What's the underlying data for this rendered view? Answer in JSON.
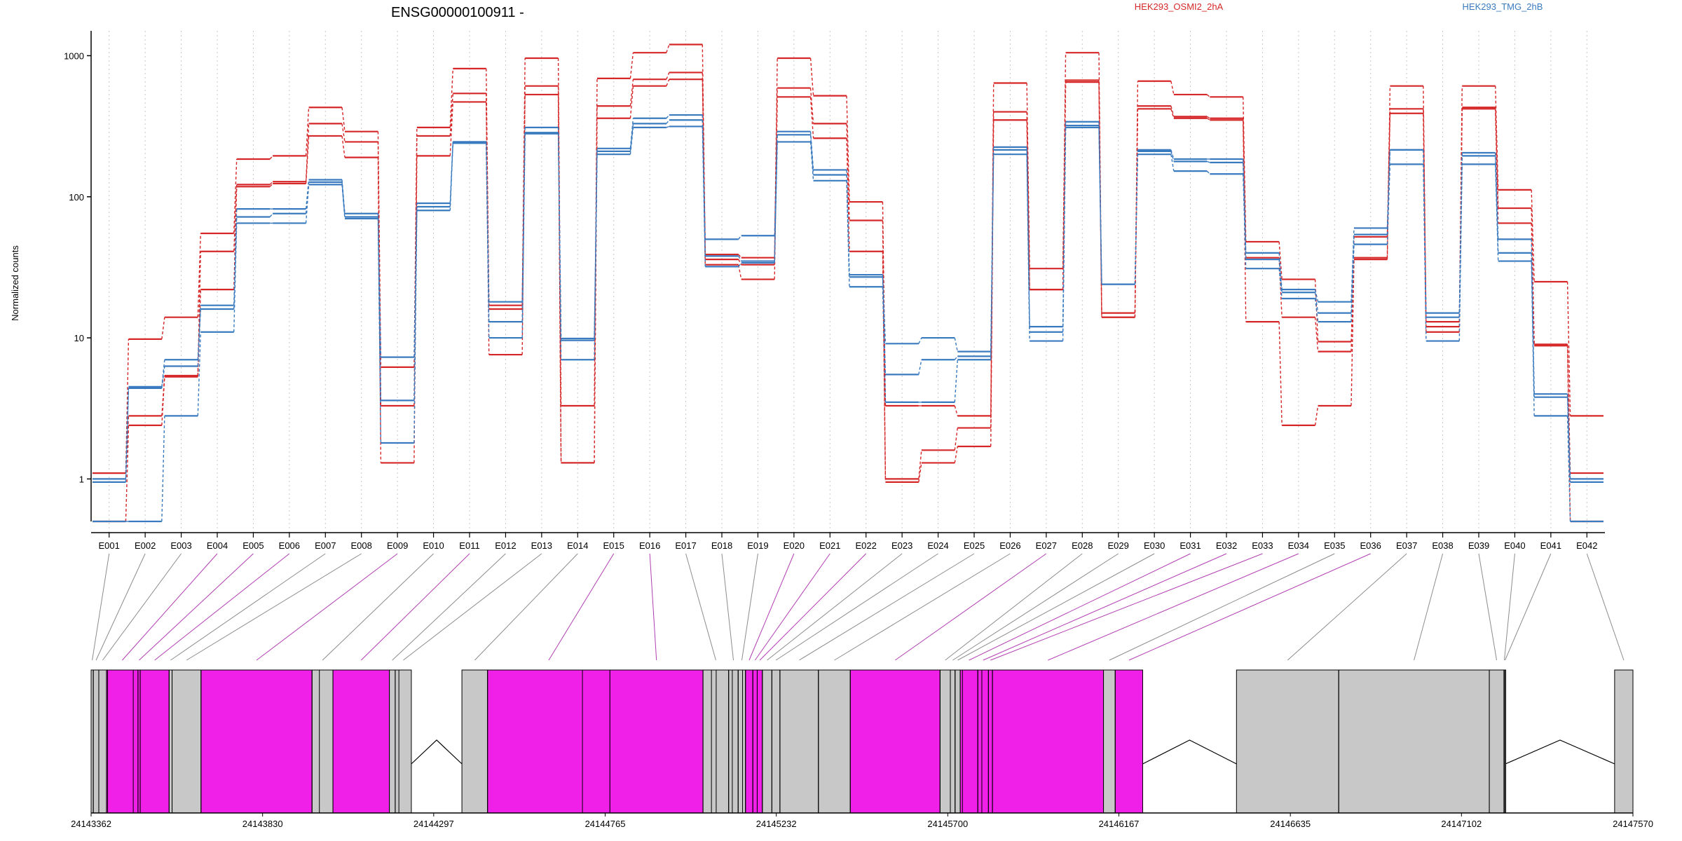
{
  "chart_data": [
    {
      "type": "line",
      "title": "ENSG00000100911 -",
      "ylabel": "Normalized counts",
      "yscale": "log",
      "ylim": [
        0.5,
        1500
      ],
      "y_ticks": [
        1,
        10,
        100,
        1000
      ],
      "y_tick_labels": [
        "1",
        "10",
        "100",
        "1000"
      ],
      "grid": true,
      "legend_position": "top-right",
      "colors": {
        "HEK293_OSMI2_2hA": "#d62728",
        "HEK293_TMG_2hB": "#3a7bbf"
      },
      "categories": [
        "E001",
        "E002",
        "E003",
        "E004",
        "E005",
        "E006",
        "E007",
        "E008",
        "E009",
        "E010",
        "E011",
        "E012",
        "E013",
        "E014",
        "E015",
        "E016",
        "E017",
        "E018",
        "E019",
        "E020",
        "E021",
        "E022",
        "E023",
        "E024",
        "E025",
        "E026",
        "E027",
        "E028",
        "E029",
        "E030",
        "E031",
        "E032",
        "E033",
        "E034",
        "E035",
        "E036",
        "E037",
        "E038",
        "E039",
        "E040",
        "E041",
        "E042"
      ],
      "series": [
        {
          "name": "HEK293_OSMI2_2hA",
          "group": "HEK293_OSMI2_2hA",
          "values": [
            1.1,
            9.8,
            14,
            55,
            185,
            195,
            430,
            290,
            6.2,
            310,
            810,
            17,
            960,
            3.3,
            690,
            1050,
            1200,
            39,
            37,
            960,
            520,
            92,
            3.3,
            3.3,
            2.8,
            640,
            31,
            1050,
            15,
            660,
            530,
            510,
            48,
            26,
            9.4,
            37,
            610,
            13,
            610,
            112,
            25,
            2.8
          ]
        },
        {
          "name": "HEK293_OSMI2_2hA",
          "group": "HEK293_OSMI2_2hA",
          "values": [
            1.1,
            2.8,
            5.4,
            41,
            122,
            128,
            330,
            245,
            3.3,
            270,
            540,
            7.6,
            610,
            1.3,
            440,
            680,
            760,
            36,
            33,
            590,
            330,
            68,
            1.0,
            1.6,
            2.3,
            400,
            22,
            670,
            14,
            440,
            370,
            360,
            37,
            14,
            8.0,
            52,
            420,
            12,
            430,
            83,
            9.0,
            1.1
          ]
        },
        {
          "name": "HEK293_OSMI2_2hA",
          "group": "HEK293_OSMI2_2hA",
          "values": [
            0.5,
            2.4,
            5.3,
            22,
            118,
            124,
            270,
            190,
            1.3,
            195,
            470,
            16,
            530,
            1.3,
            360,
            610,
            680,
            33,
            26,
            510,
            260,
            41,
            0.95,
            1.3,
            1.7,
            350,
            22,
            650,
            14,
            420,
            360,
            350,
            13,
            2.4,
            3.3,
            36,
            390,
            11,
            420,
            65,
            8.8,
            0.5
          ]
        },
        {
          "name": "HEK293_TMG_2hB",
          "group": "HEK293_TMG_2hB",
          "values": [
            1.0,
            4.5,
            7.0,
            17,
            82,
            82,
            132,
            76,
            7.3,
            90,
            245,
            18,
            310,
            9.9,
            220,
            360,
            380,
            50,
            53,
            290,
            155,
            28,
            9.1,
            10,
            8.0,
            225,
            12,
            340,
            24,
            215,
            185,
            185,
            40,
            22,
            18,
            60,
            215,
            15,
            205,
            50,
            4.0,
            1.0
          ]
        },
        {
          "name": "HEK293_TMG_2hB",
          "group": "HEK293_TMG_2hB",
          "values": [
            0.95,
            4.4,
            6.3,
            16,
            72,
            76,
            127,
            72,
            3.6,
            85,
            245,
            13,
            285,
            9.6,
            210,
            330,
            350,
            38,
            35,
            275,
            143,
            27,
            5.5,
            7.0,
            7.4,
            215,
            11,
            320,
            24,
            210,
            178,
            175,
            36,
            21,
            15,
            54,
            215,
            14,
            195,
            40,
            3.8,
            0.95
          ]
        },
        {
          "name": "HEK293_TMG_2hB",
          "group": "HEK293_TMG_2hB",
          "values": [
            0.5,
            0.5,
            2.8,
            11,
            65,
            65,
            122,
            70,
            1.8,
            80,
            240,
            10,
            280,
            7.0,
            200,
            310,
            315,
            32,
            34,
            245,
            130,
            23,
            3.5,
            3.5,
            7.0,
            200,
            9.5,
            310,
            24,
            200,
            152,
            145,
            31,
            19,
            13,
            46,
            170,
            9.5,
            170,
            35,
            2.8,
            0.5
          ]
        }
      ]
    },
    {
      "type": "table",
      "title": "",
      "xlabel": "",
      "x_ticks": [
        24143362,
        24143830,
        24144297,
        24144765,
        24145232,
        24145700,
        24146167,
        24146635,
        24147102,
        24147570
      ],
      "x_tick_labels": [
        "24143362",
        "24143830",
        "24144297",
        "24144765",
        "24145232",
        "24145700",
        "24146167",
        "24146635",
        "24147102",
        "24147570"
      ],
      "xlim": [
        24143362,
        24147570
      ],
      "colors": {
        "highlight": "#f020e8",
        "normal": "#c8c8c8"
      },
      "exon_bins": [
        {
          "id": "E001",
          "start": 24143362,
          "end": 24143368,
          "sig": false
        },
        {
          "id": "E002",
          "start": 24143368,
          "end": 24143383,
          "sig": false
        },
        {
          "id": "E003",
          "start": 24143383,
          "end": 24143404,
          "sig": false
        },
        {
          "id": "E004",
          "start": 24143404,
          "end": 24143490,
          "sig": true
        },
        {
          "id": "E005",
          "start": 24143490,
          "end": 24143496,
          "sig": true
        },
        {
          "id": "E006",
          "start": 24143496,
          "end": 24143575,
          "sig": true
        },
        {
          "id": "E007",
          "start": 24143575,
          "end": 24143583,
          "sig": false
        },
        {
          "id": "E008",
          "start": 24143583,
          "end": 24143662,
          "sig": false
        },
        {
          "id": "E009",
          "start": 24143662,
          "end": 24143965,
          "sig": true
        },
        {
          "id": "E010",
          "start": 24143965,
          "end": 24144022,
          "sig": false
        },
        {
          "id": "E011",
          "start": 24144022,
          "end": 24144176,
          "sig": true
        },
        {
          "id": "E012",
          "start": 24144176,
          "end": 24144192,
          "sig": false
        },
        {
          "id": "E013",
          "start": 24144192,
          "end": 24144236,
          "sig": false
        },
        {
          "id": "E014",
          "start": 24144374,
          "end": 24144444,
          "sig": false
        },
        {
          "id": "E015",
          "start": 24144444,
          "end": 24144778,
          "sig": true
        },
        {
          "id": "E016",
          "start": 24144778,
          "end": 24145032,
          "sig": true
        },
        {
          "id": "E017",
          "start": 24145032,
          "end": 24145102,
          "sig": false
        },
        {
          "id": "E018",
          "start": 24145102,
          "end": 24145128,
          "sig": false
        },
        {
          "id": "E019",
          "start": 24145128,
          "end": 24145148,
          "sig": false
        },
        {
          "id": "E020",
          "start": 24145148,
          "end": 24145168,
          "sig": true
        },
        {
          "id": "E021",
          "start": 24145168,
          "end": 24145180,
          "sig": true
        },
        {
          "id": "E022",
          "start": 24145180,
          "end": 24145194,
          "sig": true
        },
        {
          "id": "E023",
          "start": 24145194,
          "end": 24145220,
          "sig": false
        },
        {
          "id": "E024",
          "start": 24145220,
          "end": 24145242,
          "sig": false
        },
        {
          "id": "E025",
          "start": 24145242,
          "end": 24145347,
          "sig": false
        },
        {
          "id": "E026",
          "start": 24145347,
          "end": 24145434,
          "sig": false
        },
        {
          "id": "E027",
          "start": 24145434,
          "end": 24145679,
          "sig": true
        },
        {
          "id": "E028",
          "start": 24145679,
          "end": 24145707,
          "sig": false
        },
        {
          "id": "E029",
          "start": 24145707,
          "end": 24145720,
          "sig": false
        },
        {
          "id": "E030",
          "start": 24145720,
          "end": 24145734,
          "sig": false
        },
        {
          "id": "E031",
          "start": 24145734,
          "end": 24145782,
          "sig": true
        },
        {
          "id": "E032",
          "start": 24145782,
          "end": 24145811,
          "sig": true
        },
        {
          "id": "E033",
          "start": 24145811,
          "end": 24145822,
          "sig": true
        },
        {
          "id": "E034",
          "start": 24145822,
          "end": 24146125,
          "sig": true
        },
        {
          "id": "E035",
          "start": 24146125,
          "end": 24146157,
          "sig": false
        },
        {
          "id": "E036",
          "start": 24146157,
          "end": 24146232,
          "sig": true
        },
        {
          "id": "E037",
          "start": 24146488,
          "end": 24146767,
          "sig": false
        },
        {
          "id": "E038",
          "start": 24146767,
          "end": 24147178,
          "sig": false
        },
        {
          "id": "E039",
          "start": 24147178,
          "end": 24147218,
          "sig": false
        },
        {
          "id": "E040",
          "start": 24147218,
          "end": 24147220,
          "sig": false
        },
        {
          "id": "E041",
          "start": 24147220,
          "end": 24147222,
          "sig": false
        },
        {
          "id": "E042",
          "start": 24147520,
          "end": 24147570,
          "sig": false
        }
      ],
      "introns": [
        [
          24144236,
          24144374
        ],
        [
          24146232,
          24146488
        ],
        [
          24147222,
          24147520
        ]
      ],
      "bin_borders": [
        24143368,
        24143383,
        24143404,
        24143407,
        24143477,
        24143490,
        24143496,
        24143575,
        24143583,
        24143662,
        24143965,
        24143985,
        24144022,
        24144176,
        24144192,
        24144202,
        24144444,
        24144703,
        24145032,
        24145055,
        24145068,
        24145102,
        24145112,
        24145128,
        24145140,
        24145148,
        24145168,
        24145180,
        24145194,
        24145220,
        24145242,
        24145347,
        24145434,
        24145679,
        24145707,
        24145720,
        24145734,
        24145740,
        24145782,
        24145793,
        24145811,
        24145822,
        24146125,
        24146157,
        24146767,
        24147178
      ]
    }
  ]
}
